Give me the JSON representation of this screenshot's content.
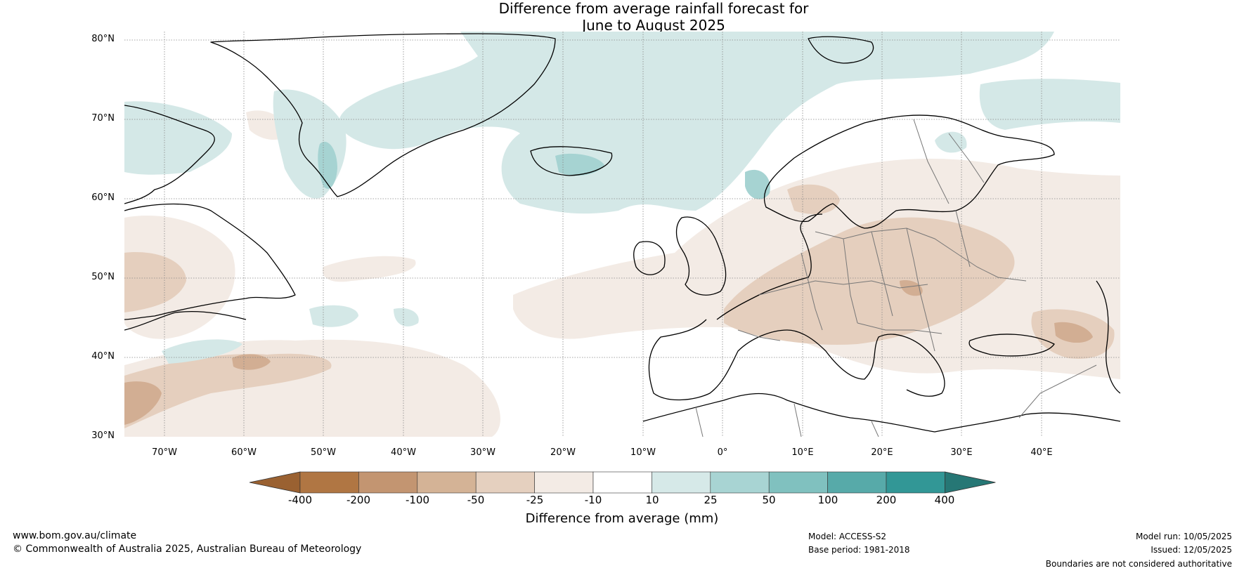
{
  "title": {
    "line1": "Difference from average rainfall forecast for",
    "line2": "June to August 2025"
  },
  "map": {
    "lat_labels": [
      "80°N",
      "70°N",
      "60°N",
      "50°N",
      "40°N",
      "30°N"
    ],
    "lon_labels": [
      "70°W",
      "60°W",
      "50°W",
      "40°W",
      "30°W",
      "20°W",
      "10°W",
      "0°",
      "10°E",
      "20°E",
      "30°E",
      "40°E"
    ],
    "extent": {
      "lon_min": -75,
      "lon_max": 50,
      "lat_min": 30,
      "lat_max": 81
    },
    "colors": {
      "wet_light": "#d4e8e7",
      "wet_mid": "#a6d3d2",
      "dry_light": "#f3ebe5",
      "dry_mid": "#e5cfbe",
      "dry_strong": "#d2ae93",
      "coast": "#000000",
      "border": "#777777"
    }
  },
  "colorbar": {
    "ticks": [
      "-400",
      "-200",
      "-100",
      "-50",
      "-25",
      "-10",
      "10",
      "25",
      "50",
      "100",
      "200",
      "400"
    ],
    "colors": [
      "#9a6131",
      "#b07643",
      "#c39571",
      "#d4b396",
      "#e5d0bf",
      "#f3ebe5",
      "#ffffff",
      "#d6e9e8",
      "#a8d4d3",
      "#80c1bf",
      "#57aaa9",
      "#329796",
      "#267775"
    ],
    "label": "Difference from average (mm)"
  },
  "footer": {
    "website": "www.bom.gov.au/climate",
    "copyright": "© Commonwealth of Australia 2025, Australian Bureau of Meteorology",
    "model": "Model: ACCESS-S2",
    "base_period": "Base period: 1981-2018",
    "model_run": "Model run: 10/05/2025",
    "issued": "Issued: 12/05/2025",
    "disclaimer": "Boundaries are not considered authoritative"
  }
}
